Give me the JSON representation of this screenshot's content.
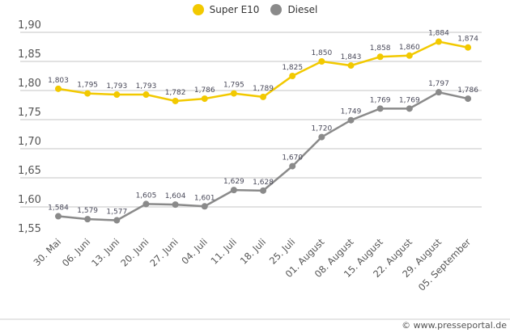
{
  "chart_data": {
    "type": "line",
    "categories": [
      "30. Mai",
      "06. Juni",
      "13. Juni",
      "20. Juni",
      "27. Juni",
      "04. Juli",
      "11. Juli",
      "18. Juli",
      "25. Juli",
      "01. August",
      "08. August",
      "15. August",
      "22. August",
      "29. August",
      "05. September"
    ],
    "series": [
      {
        "name": "Super E10",
        "color": "#f2c900",
        "values": [
          1.803,
          1.795,
          1.793,
          1.793,
          1.782,
          1.786,
          1.795,
          1.789,
          1.825,
          1.85,
          1.843,
          1.858,
          1.86,
          1.884,
          1.874
        ]
      },
      {
        "name": "Diesel",
        "color": "#8a8a8a",
        "values": [
          1.584,
          1.579,
          1.577,
          1.605,
          1.604,
          1.601,
          1.629,
          1.628,
          1.67,
          1.72,
          1.749,
          1.769,
          1.769,
          1.797,
          1.786
        ]
      }
    ],
    "yticks": [
      "1,55",
      "1,60",
      "1,65",
      "1,70",
      "1,75",
      "1,80",
      "1,85",
      "1,90"
    ],
    "ylim": [
      1.55,
      1.9
    ],
    "grid": true,
    "legend": "top-center",
    "decimal_separator": ","
  },
  "credit": "© www.presseportal.de"
}
